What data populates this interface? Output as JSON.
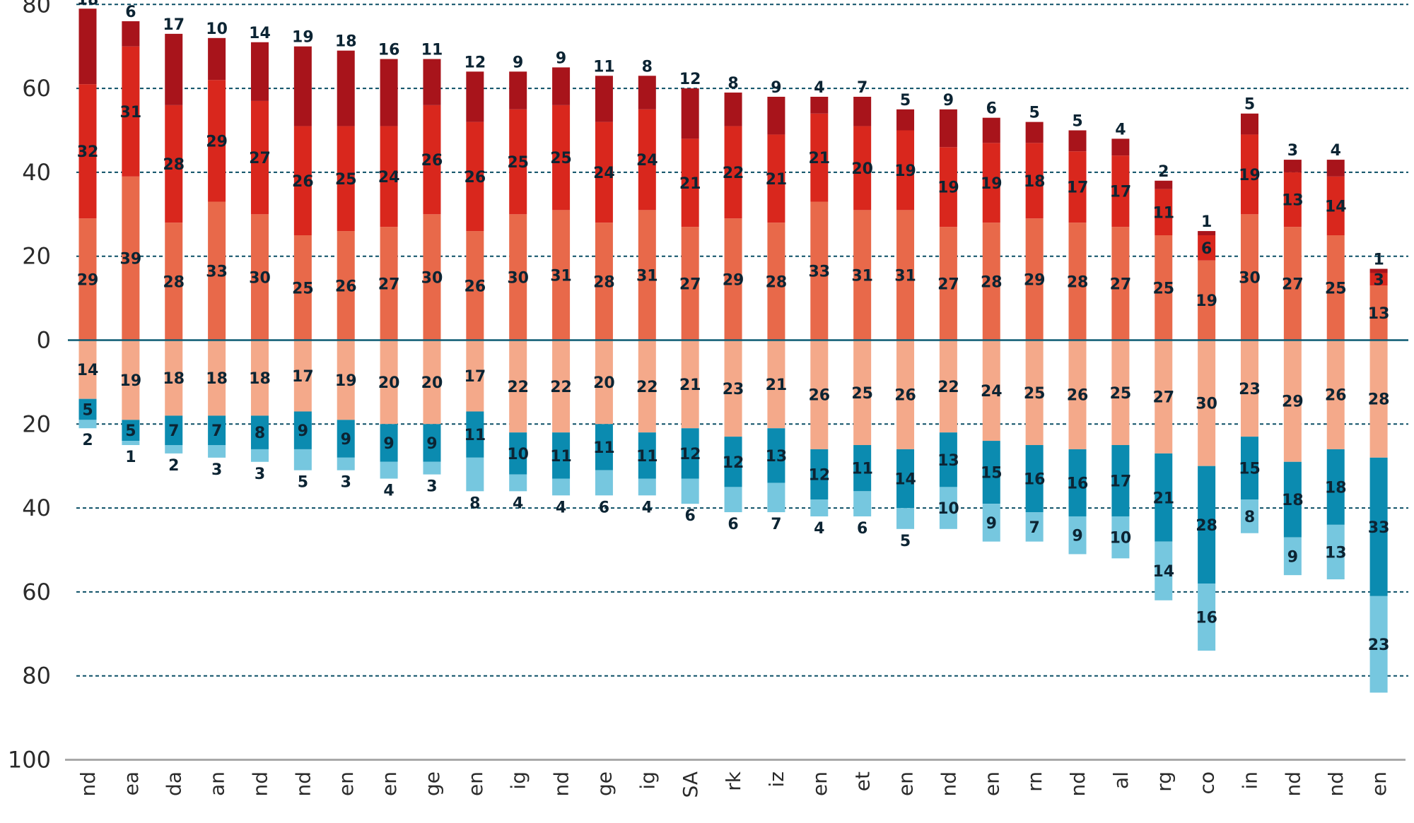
{
  "chart_data": {
    "type": "bar",
    "stacked": true,
    "diverging": true,
    "title": "",
    "xlabel": "",
    "ylabel": "",
    "ylim": [
      -100,
      80
    ],
    "yticks": [
      80,
      60,
      40,
      20,
      0,
      -20,
      -40,
      -60,
      -80,
      -100
    ],
    "ytick_labels": [
      "80",
      "60",
      "40",
      "20",
      "0",
      "20",
      "40",
      "60",
      "80",
      "100"
    ],
    "grid": true,
    "legend": "none",
    "categories": [
      "nd",
      "ea",
      "da",
      "an",
      "nd",
      "nd",
      "en",
      "en",
      "ge",
      "en",
      "ig",
      "nd",
      "ge",
      "ig",
      "SA",
      "rk",
      "iz",
      "en",
      "et",
      "en",
      "nd",
      "en",
      "rn",
      "nd",
      "al",
      "rg",
      "co",
      "in",
      "nd",
      "nd",
      "en"
    ],
    "series": [
      {
        "name": "positive-1",
        "direction": "up",
        "color": "#e8694a",
        "values": [
          29,
          39,
          28,
          33,
          30,
          25,
          26,
          27,
          30,
          26,
          30,
          31,
          28,
          31,
          27,
          29,
          28,
          33,
          31,
          31,
          27,
          28,
          29,
          28,
          27,
          25,
          19,
          30,
          27,
          25,
          13
        ]
      },
      {
        "name": "positive-2",
        "direction": "up",
        "color": "#d9271d",
        "values": [
          32,
          31,
          28,
          29,
          27,
          26,
          25,
          24,
          26,
          26,
          25,
          25,
          24,
          24,
          21,
          22,
          21,
          21,
          20,
          19,
          19,
          19,
          18,
          17,
          17,
          11,
          6,
          19,
          13,
          14,
          3
        ]
      },
      {
        "name": "positive-3",
        "direction": "up",
        "color": "#a8141b",
        "values": [
          18,
          6,
          17,
          10,
          14,
          19,
          18,
          16,
          11,
          12,
          9,
          9,
          11,
          8,
          12,
          8,
          9,
          4,
          7,
          5,
          9,
          6,
          5,
          5,
          4,
          2,
          1,
          5,
          3,
          4,
          1
        ]
      },
      {
        "name": "negative-1",
        "direction": "down",
        "color": "#f4a98a",
        "values": [
          14,
          19,
          18,
          18,
          18,
          17,
          19,
          20,
          20,
          17,
          22,
          22,
          20,
          22,
          21,
          23,
          21,
          26,
          25,
          26,
          22,
          24,
          25,
          26,
          25,
          27,
          30,
          23,
          29,
          26,
          28
        ]
      },
      {
        "name": "negative-2",
        "direction": "down",
        "color": "#0b8bb0",
        "values": [
          5,
          5,
          7,
          7,
          8,
          9,
          9,
          9,
          9,
          11,
          10,
          11,
          11,
          11,
          12,
          12,
          13,
          12,
          11,
          14,
          13,
          15,
          16,
          16,
          17,
          21,
          28,
          15,
          18,
          18,
          33
        ]
      },
      {
        "name": "negative-3",
        "direction": "down",
        "color": "#76c7df",
        "values": [
          2,
          1,
          2,
          3,
          3,
          5,
          3,
          4,
          3,
          8,
          4,
          4,
          6,
          4,
          6,
          6,
          7,
          4,
          6,
          5,
          10,
          9,
          7,
          9,
          10,
          14,
          16,
          8,
          9,
          13,
          23
        ]
      }
    ]
  },
  "colors": {
    "zero_line": "#0b5a72",
    "grid": "#0b4f66",
    "baseline": "#a9a9a9",
    "label": "#0c2433",
    "tick": "#2b2b2b"
  }
}
